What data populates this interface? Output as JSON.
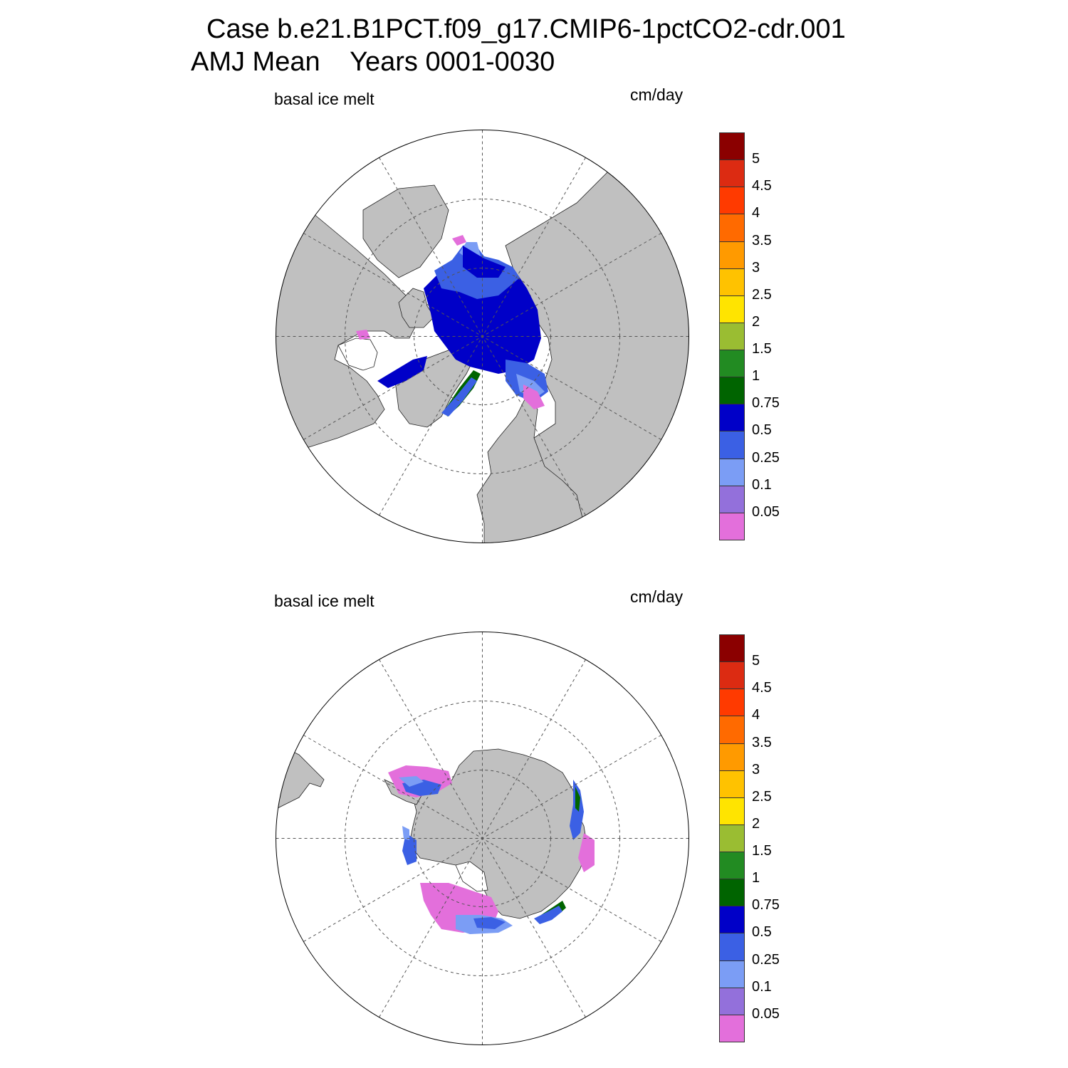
{
  "title": {
    "line1": "Case b.e21.B1PCT.f09_g17.CMIP6-1pctCO2-cdr.001",
    "line2": "AMJ Mean    Years 0001-0030"
  },
  "panels": [
    {
      "id": "north",
      "left_label": "basal ice melt",
      "right_label": "cm/day",
      "hemisphere": "north"
    },
    {
      "id": "south",
      "left_label": "basal ice melt",
      "right_label": "cm/day",
      "hemisphere": "south"
    }
  ],
  "colorbar": {
    "levels": [
      "0.05",
      "0.1",
      "0.25",
      "0.5",
      "0.75",
      "1",
      "1.5",
      "2",
      "2.5",
      "3",
      "3.5",
      "4",
      "4.5",
      "5"
    ],
    "colors": [
      "#e36fdb",
      "#9370db",
      "#7b9df5",
      "#3b60e4",
      "#0000c8",
      "#006400",
      "#228b22",
      "#9abd32",
      "#ffe400",
      "#ffc200",
      "#ff9a00",
      "#ff6a00",
      "#ff3a00",
      "#dc2b12",
      "#8b0000"
    ]
  },
  "map_colors": {
    "land": "#c0c0c0",
    "ocean": "#ffffff",
    "grid": "#555555"
  }
}
